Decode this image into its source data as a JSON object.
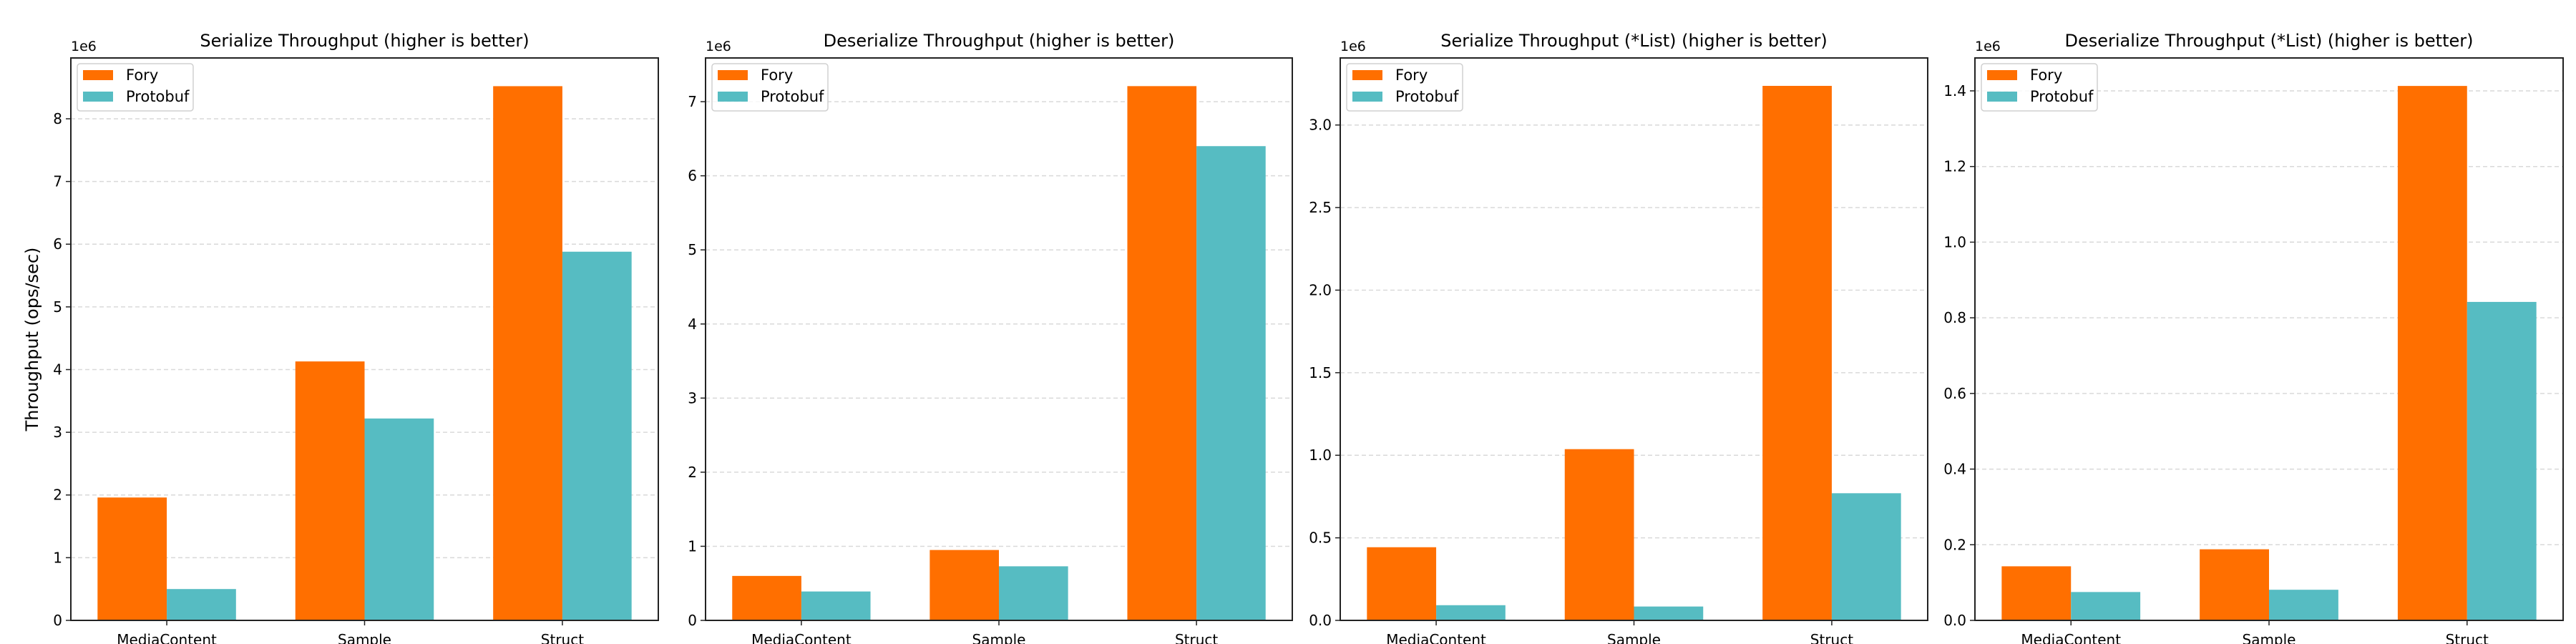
{
  "colors": {
    "fory": "#FF6F00",
    "protobuf": "#56BCC2",
    "grid": "#d9d9d9",
    "axis": "#222222"
  },
  "chart_data": [
    {
      "type": "bar",
      "title": "Serialize Throughput (higher is better)",
      "ylabel": "Throughput (ops/sec)",
      "offset_label": "1e6",
      "categories": [
        "MediaContent",
        "Sample",
        "Struct"
      ],
      "series": [
        {
          "name": "Fory",
          "values": [
            1.96,
            4.13,
            8.52
          ]
        },
        {
          "name": "Protobuf",
          "values": [
            0.5,
            3.22,
            5.88
          ]
        }
      ],
      "ylim": [
        0,
        8.97
      ],
      "yticks": [
        0,
        1,
        2,
        3,
        4,
        5,
        6,
        7,
        8
      ],
      "ytick_labels": [
        "0",
        "1",
        "2",
        "3",
        "4",
        "5",
        "6",
        "7",
        "8"
      ],
      "grid": "y dashed",
      "legend": "top-left"
    },
    {
      "type": "bar",
      "title": "Deserialize Throughput (higher is better)",
      "offset_label": "1e6",
      "categories": [
        "MediaContent",
        "Sample",
        "Struct"
      ],
      "series": [
        {
          "name": "Fory",
          "values": [
            0.6,
            0.95,
            7.21
          ]
        },
        {
          "name": "Protobuf",
          "values": [
            0.39,
            0.73,
            6.4
          ]
        }
      ],
      "ylim": [
        0,
        7.59
      ],
      "yticks": [
        0,
        1,
        2,
        3,
        4,
        5,
        6,
        7
      ],
      "ytick_labels": [
        "0",
        "1",
        "2",
        "3",
        "4",
        "5",
        "6",
        "7"
      ],
      "grid": "y dashed",
      "legend": "top-left"
    },
    {
      "type": "bar",
      "title": "Serialize Throughput (*List) (higher is better)",
      "offset_label": "1e6",
      "categories": [
        "MediaContent\nList",
        "Sample\nList",
        "Struct\nList"
      ],
      "series": [
        {
          "name": "Fory",
          "values": [
            0.443,
            1.037,
            3.237
          ]
        },
        {
          "name": "Protobuf",
          "values": [
            0.092,
            0.084,
            0.77
          ]
        }
      ],
      "ylim": [
        0,
        3.406
      ],
      "yticks": [
        0,
        0.5,
        1.0,
        1.5,
        2.0,
        2.5,
        3.0
      ],
      "ytick_labels": [
        "0.0",
        "0.5",
        "1.0",
        "1.5",
        "2.0",
        "2.5",
        "3.0"
      ],
      "grid": "y dashed",
      "legend": "top-left"
    },
    {
      "type": "bar",
      "title": "Deserialize Throughput (*List) (higher is better)",
      "offset_label": "1e6",
      "categories": [
        "MediaContent\nList",
        "Sample\nList",
        "Struct\nList"
      ],
      "series": [
        {
          "name": "Fory",
          "values": [
            0.143,
            0.188,
            1.413
          ]
        },
        {
          "name": "Protobuf",
          "values": [
            0.075,
            0.081,
            0.842
          ]
        }
      ],
      "ylim": [
        0,
        1.487
      ],
      "yticks": [
        0,
        0.2,
        0.4,
        0.6,
        0.8,
        1.0,
        1.2,
        1.4
      ],
      "ytick_labels": [
        "0.0",
        "0.2",
        "0.4",
        "0.6",
        "0.8",
        "1.0",
        "1.2",
        "1.4"
      ],
      "grid": "y dashed",
      "legend": "top-left"
    }
  ]
}
